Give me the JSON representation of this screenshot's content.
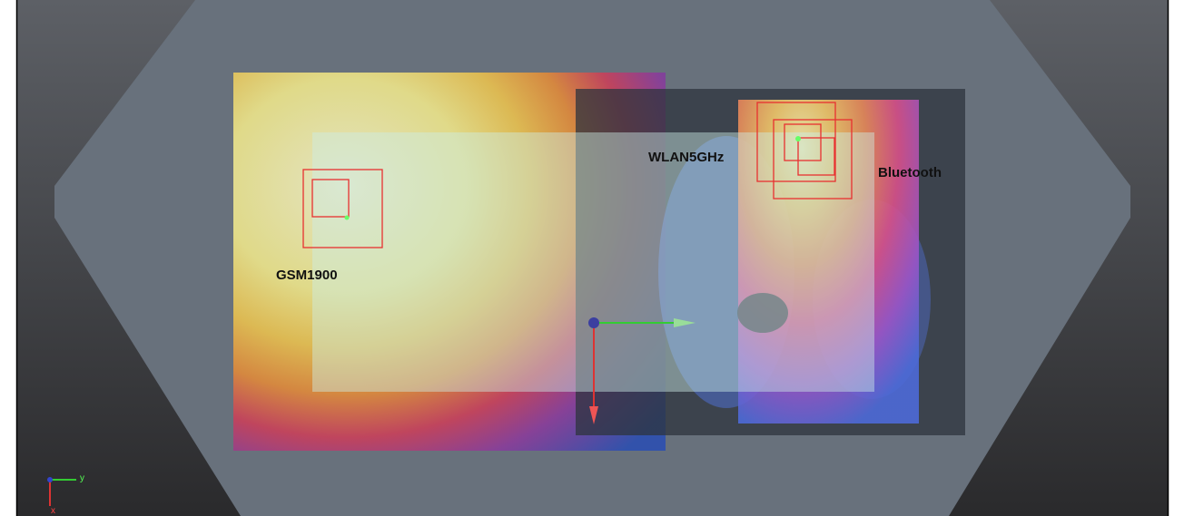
{
  "labels": {
    "gsm": "GSM1900",
    "wlan": "WLAN5GHz",
    "bluetooth": "Bluetooth"
  },
  "axes": {
    "y": "y",
    "x": "x"
  }
}
